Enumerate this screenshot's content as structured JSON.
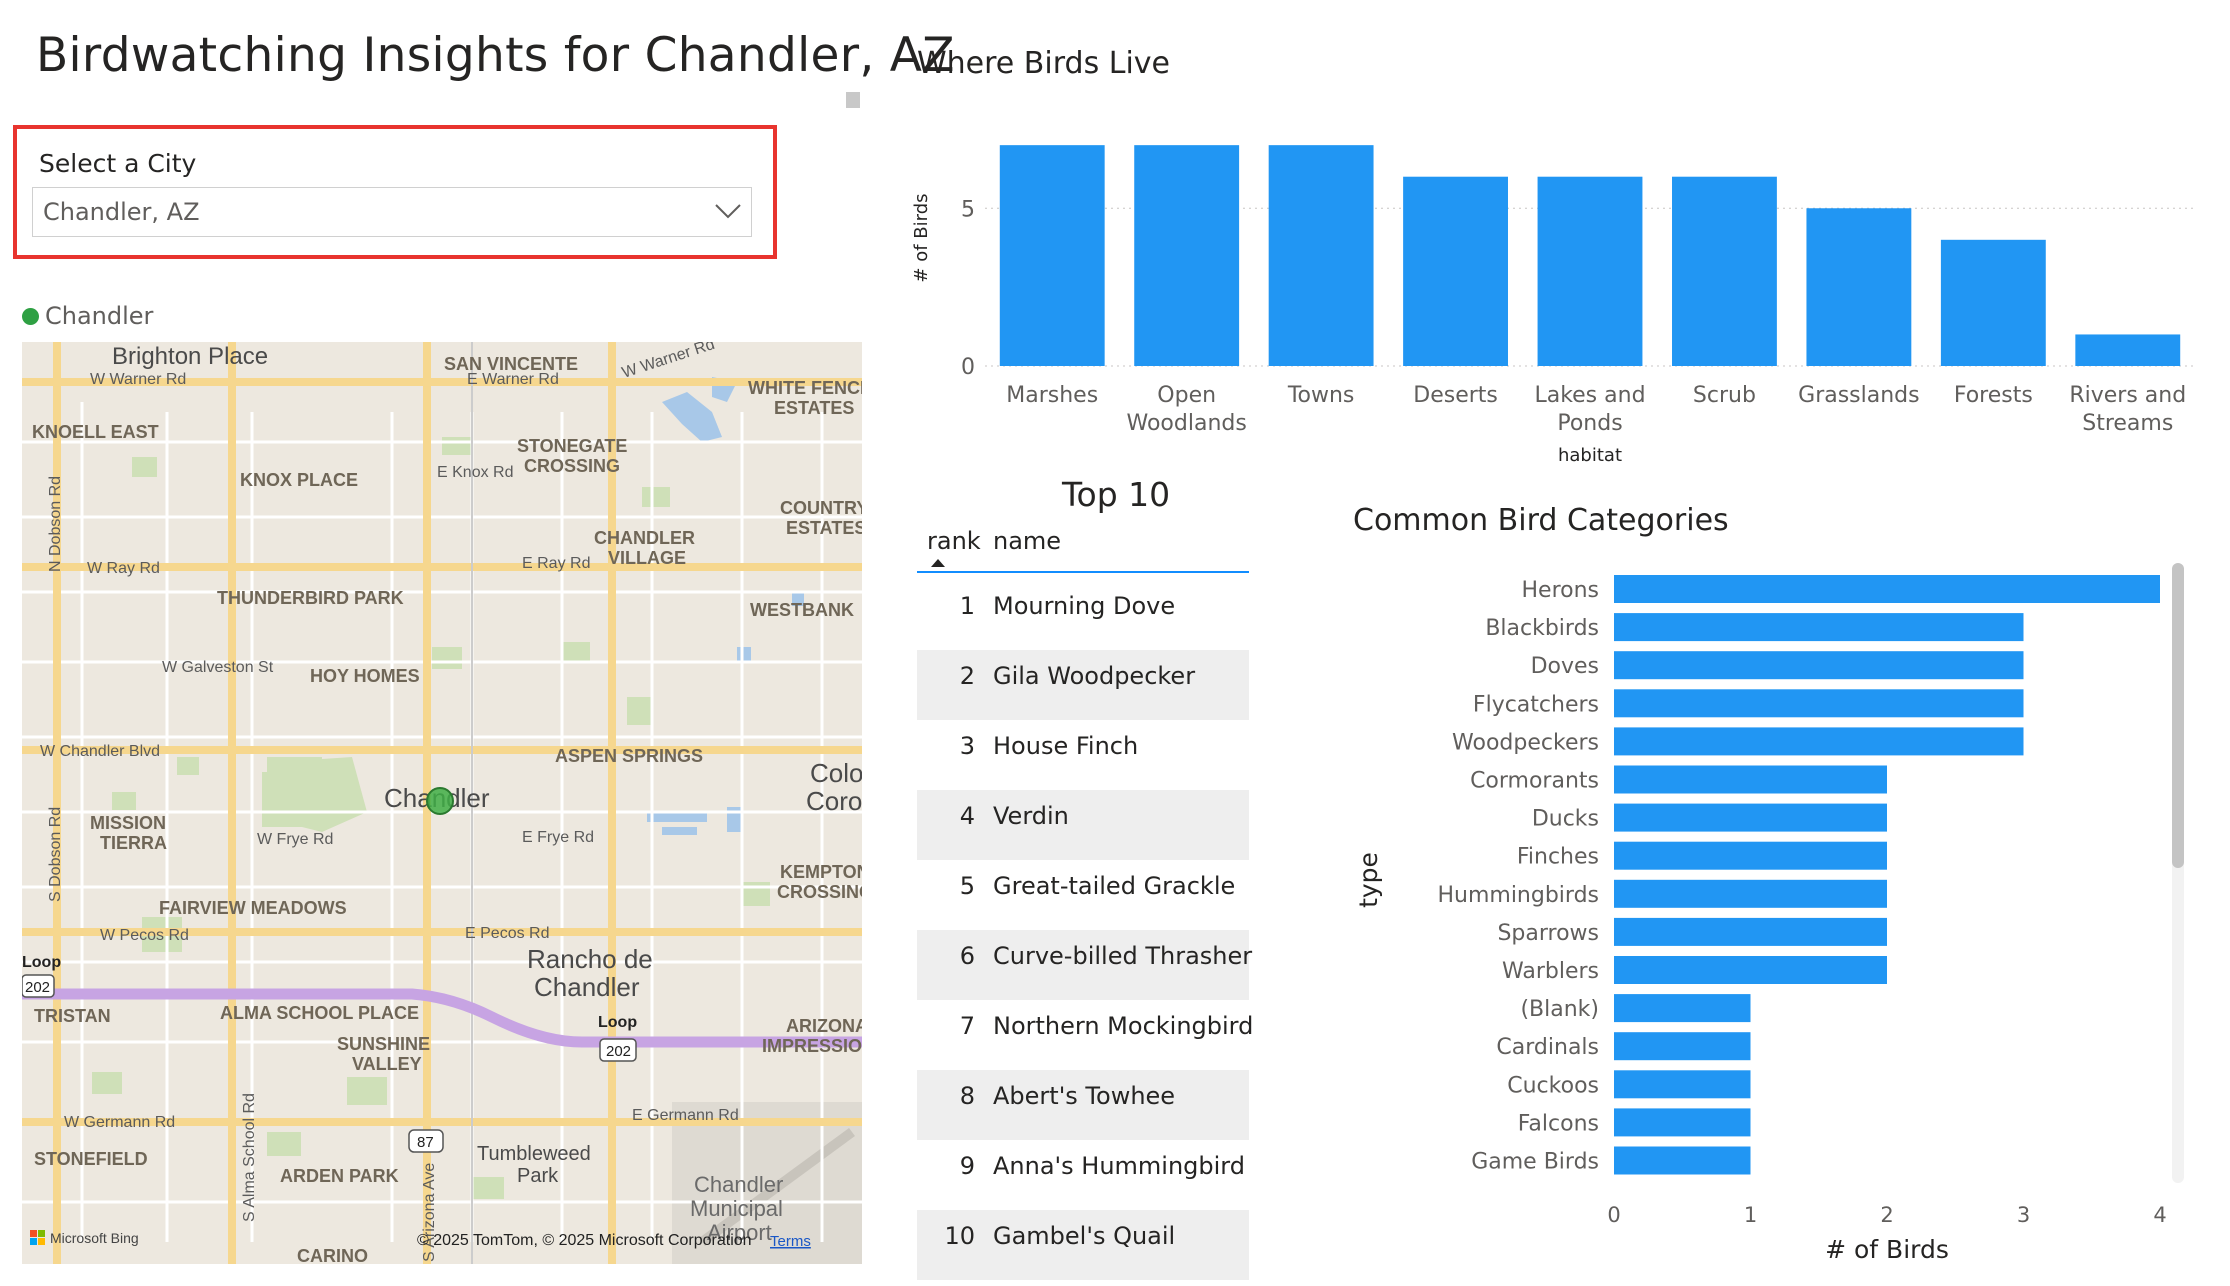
{
  "report": {
    "title": "Birdwatching Insights for Chandler, AZ"
  },
  "slicer": {
    "label": "Select a City",
    "selected": "Chandler, AZ"
  },
  "map": {
    "legend": "Chandler",
    "attribution": "© 2025 TomTom, © 2025 Microsoft Corporation",
    "terms": "Terms",
    "brand": "Microsoft Bing",
    "city_label": "Chandler",
    "labels": {
      "brighton": "Brighton Place",
      "san_vincente": "SAN VINCENTE",
      "white_fence": "WHITE FENCE",
      "estates": "ESTATES",
      "knoell_east": "KNOELL EAST",
      "stonegate": "STONEGATE",
      "crossing": "CROSSING",
      "knox_place": "KNOX PLACE",
      "country": "COUNTRY",
      "country_estates": "ESTATES",
      "chandler_village_1": "CHANDLER",
      "chandler_village_2": "VILLAGE",
      "thunderbird": "THUNDERBIRD PARK",
      "westbank": "WESTBANK",
      "hoy_homes": "HOY HOMES",
      "aspen_springs": "ASPEN SPRINGS",
      "colo": "Colo",
      "coro": "Coro",
      "mission": "MISSION",
      "tierra": "TIERRA",
      "kempton": "KEMPTON",
      "kempton_crossing": "CROSSING",
      "fairview": "FAIRVIEW MEADOWS",
      "rancho_1": "Rancho de",
      "rancho_2": "Chandler",
      "tristan": "TRISTAN",
      "alma_school": "ALMA SCHOOL PLACE",
      "sunshine": "SUNSHINE",
      "valley": "VALLEY",
      "arizona": "ARIZONA",
      "impression": "IMPRESSIO",
      "stonefield": "STONEFIELD",
      "arden_park": "ARDEN PARK",
      "tumbleweed": "Tumbleweed",
      "park": "Park",
      "airport_1": "Chandler",
      "airport_2": "Municipal",
      "airport_3": "Airport",
      "carino": "CARINO",
      "loop1": "Loop",
      "shield202a": "202",
      "loop2": "Loop",
      "shield202b": "202",
      "shield87": "87",
      "r_warner_w": "W Warner Rd",
      "r_warner_e": "E Warner Rd",
      "r_warner_ne": "W Warner Rd",
      "r_knox": "E Knox Rd",
      "r_ray_w": "W Ray Rd",
      "r_ray_e": "E Ray Rd",
      "r_galveston": "W Galveston St",
      "r_chandler_blvd": "W Chandler Blvd",
      "r_frye_w": "W Frye Rd",
      "r_frye_e": "E Frye Rd",
      "r_pecos_w": "W Pecos Rd",
      "r_pecos_e": "E Pecos Rd",
      "r_germann_w": "W Germann Rd",
      "r_germann_e": "E Germann Rd",
      "r_dobson_n": "N Dobson Rd",
      "r_dobson_s": "S Dobson Rd",
      "r_alma": "S Alma School Rd",
      "r_arizona": "S Arizona Ave"
    }
  },
  "habitat_chart": {
    "title": "Where Birds Live",
    "chart_data": {
      "type": "bar",
      "categories": [
        "Marshes",
        "Open Woodlands",
        "Towns",
        "Deserts",
        "Lakes and Ponds",
        "Scrub",
        "Grasslands",
        "Forests",
        "Rivers and Streams"
      ],
      "category_lines": [
        [
          "Marshes"
        ],
        [
          "Open",
          "Woodlands"
        ],
        [
          "Towns"
        ],
        [
          "Deserts"
        ],
        [
          "Lakes and",
          "Ponds"
        ],
        [
          "Scrub"
        ],
        [
          "Grasslands"
        ],
        [
          "Forests"
        ],
        [
          "Rivers and",
          "Streams"
        ]
      ],
      "values": [
        7,
        7,
        7,
        6,
        6,
        6,
        5,
        4,
        1
      ],
      "xlabel": "habitat",
      "ylabel": "# of Birds",
      "ylim": [
        0,
        7.1
      ],
      "yticks": [
        0,
        5
      ],
      "color": "#2196f3"
    }
  },
  "top10": {
    "title": "Top 10",
    "columns": [
      "rank",
      "name"
    ],
    "rows": [
      {
        "rank": "1",
        "name": "Mourning Dove"
      },
      {
        "rank": "2",
        "name": "Gila Woodpecker"
      },
      {
        "rank": "3",
        "name": "House Finch"
      },
      {
        "rank": "4",
        "name": "Verdin"
      },
      {
        "rank": "5",
        "name": "Great-tailed Grackle"
      },
      {
        "rank": "6",
        "name": "Curve-billed Thrasher"
      },
      {
        "rank": "7",
        "name": "Northern Mockingbird"
      },
      {
        "rank": "8",
        "name": "Abert's Towhee"
      },
      {
        "rank": "9",
        "name": "Anna's Hummingbird"
      },
      {
        "rank": "10",
        "name": "Gambel's Quail"
      }
    ]
  },
  "category_chart": {
    "title": "Common Bird Categories",
    "chart_data": {
      "type": "bar",
      "orientation": "horizontal",
      "categories": [
        "Herons",
        "Blackbirds",
        "Doves",
        "Flycatchers",
        "Woodpeckers",
        "Cormorants",
        "Ducks",
        "Finches",
        "Hummingbirds",
        "Sparrows",
        "Warblers",
        "(Blank)",
        "Cardinals",
        "Cuckoos",
        "Falcons",
        "Game Birds"
      ],
      "values": [
        4,
        3,
        3,
        3,
        3,
        2,
        2,
        2,
        2,
        2,
        2,
        1,
        1,
        1,
        1,
        1
      ],
      "xlabel": "# of Birds",
      "ylabel": "type",
      "xlim": [
        0,
        4
      ],
      "xticks": [
        0,
        1,
        2,
        3,
        4
      ],
      "color": "#2196f3"
    }
  }
}
